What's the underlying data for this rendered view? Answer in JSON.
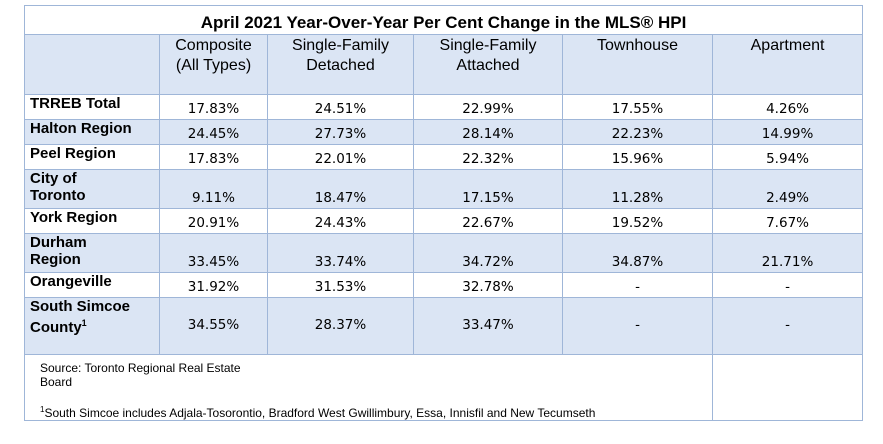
{
  "title": "April 2021 Year-Over-Year Per Cent Change in the MLS® HPI",
  "columns": [
    {
      "line1": "Composite",
      "line2": "(All Types)"
    },
    {
      "line1": "Single-Family",
      "line2": "Detached"
    },
    {
      "line1": "Single-Family",
      "line2": "Attached"
    },
    {
      "line1": "Townhouse",
      "line2": ""
    },
    {
      "line1": "Apartment",
      "line2": ""
    }
  ],
  "rows": [
    {
      "line1": "TRREB Total",
      "line2": "",
      "sup": "",
      "values": [
        "17.83%",
        "24.51%",
        "22.99%",
        "17.55%",
        "4.26%"
      ]
    },
    {
      "line1": "Halton Region",
      "line2": "",
      "sup": "",
      "values": [
        "24.45%",
        "27.73%",
        "28.14%",
        "22.23%",
        "14.99%"
      ]
    },
    {
      "line1": "Peel Region",
      "line2": "",
      "sup": "",
      "values": [
        "17.83%",
        "22.01%",
        "22.32%",
        "15.96%",
        "5.94%"
      ]
    },
    {
      "line1": "City of",
      "line2": "Toronto",
      "sup": "",
      "values": [
        "9.11%",
        "18.47%",
        "17.15%",
        "11.28%",
        "2.49%"
      ]
    },
    {
      "line1": "York Region",
      "line2": "",
      "sup": "",
      "values": [
        "20.91%",
        "24.43%",
        "22.67%",
        "19.52%",
        "7.67%"
      ]
    },
    {
      "line1": "Durham",
      "line2": "Region",
      "sup": "",
      "values": [
        "33.45%",
        "33.74%",
        "34.72%",
        "34.87%",
        "21.71%"
      ]
    },
    {
      "line1": "Orangeville",
      "line2": "",
      "sup": "",
      "values": [
        "31.92%",
        "31.53%",
        "32.78%",
        "-",
        "-"
      ]
    },
    {
      "line1": "South Simcoe",
      "line2": "County",
      "sup": "1",
      "values": [
        "34.55%",
        "28.37%",
        "33.47%",
        "-",
        "-"
      ]
    }
  ],
  "source_line1": "Source: Toronto Regional Real Estate",
  "source_line2": "Board",
  "footnote_mark": "1",
  "footnote_text": "South Simcoe includes Adjala-Tosorontio, Bradford West Gwillimbury, Essa, Innisfil and New Tecumseth"
}
